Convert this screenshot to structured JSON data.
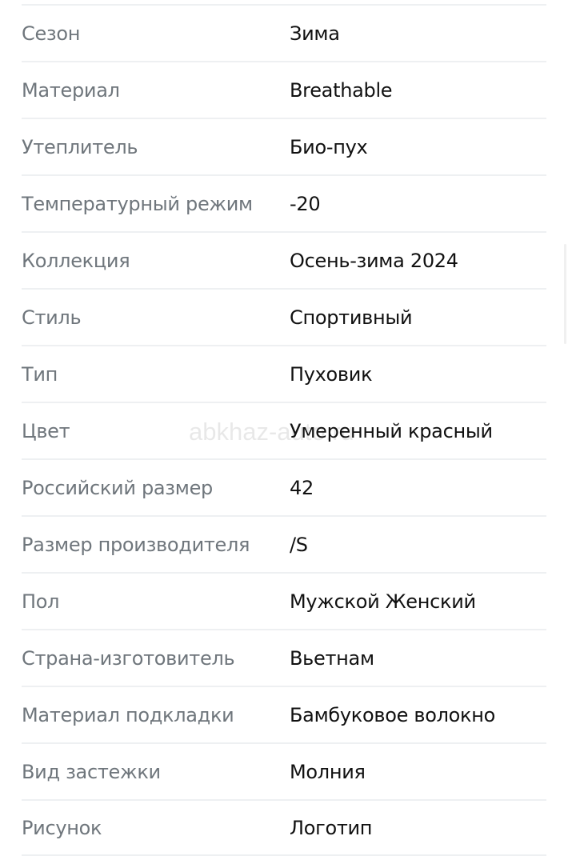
{
  "specs": [
    {
      "label": "Сезон",
      "value": "Зима"
    },
    {
      "label": "Материал",
      "value": "Breathable"
    },
    {
      "label": "Утеплитель",
      "value": "Био-пух"
    },
    {
      "label": "Температурный режим",
      "value": "-20"
    },
    {
      "label": "Коллекция",
      "value": "Осень-зима 2024"
    },
    {
      "label": "Стиль",
      "value": "Спортивный"
    },
    {
      "label": "Тип",
      "value": "Пуховик"
    },
    {
      "label": "Цвет",
      "value": "Умеренный красный"
    },
    {
      "label": "Российский размер",
      "value": "42"
    },
    {
      "label": "Размер производителя",
      "value": "/S"
    },
    {
      "label": "Пол",
      "value": "Мужской Женский"
    },
    {
      "label": "Страна-изготовитель",
      "value": "Вьетнам"
    },
    {
      "label": "Материал подкладки",
      "value": "Бамбуковое волокно"
    },
    {
      "label": "Вид застежки",
      "value": "Молния"
    },
    {
      "label": "Рисунок",
      "value": "Логотип"
    }
  ],
  "watermark": "abkhaz-auto.ru"
}
